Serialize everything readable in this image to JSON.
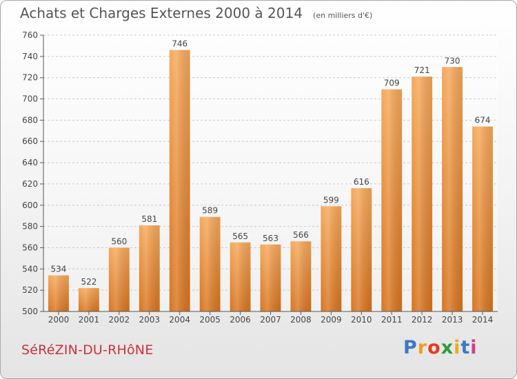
{
  "chart_data": {
    "type": "bar",
    "title": "Achats et Charges Externes 2000 à 2014",
    "subtitle": "(en milliers d'€)",
    "categories": [
      "2000",
      "2001",
      "2002",
      "2003",
      "2004",
      "2005",
      "2006",
      "2007",
      "2008",
      "2009",
      "2010",
      "2011",
      "2012",
      "2013",
      "2014"
    ],
    "values": [
      534,
      522,
      560,
      581,
      746,
      589,
      565,
      563,
      566,
      599,
      616,
      709,
      721,
      730,
      674
    ],
    "ylim": [
      500,
      760
    ],
    "yticks": [
      500,
      520,
      540,
      560,
      580,
      600,
      620,
      640,
      660,
      680,
      700,
      720,
      740,
      760
    ],
    "xlabel": "",
    "ylabel": "",
    "grid": true,
    "bar_color": "#f0963c"
  },
  "footer": {
    "city": "SéRéZIN-DU-RHôNE",
    "brand_letters": [
      "P",
      "r",
      "o",
      "x",
      "i",
      "t",
      "i"
    ],
    "brand_colors": [
      "#3b78c8",
      "#e8a020",
      "#e23c1e",
      "#2f9a3c",
      "#f0a81c",
      "#3b78c8",
      "#d23c8c"
    ]
  }
}
